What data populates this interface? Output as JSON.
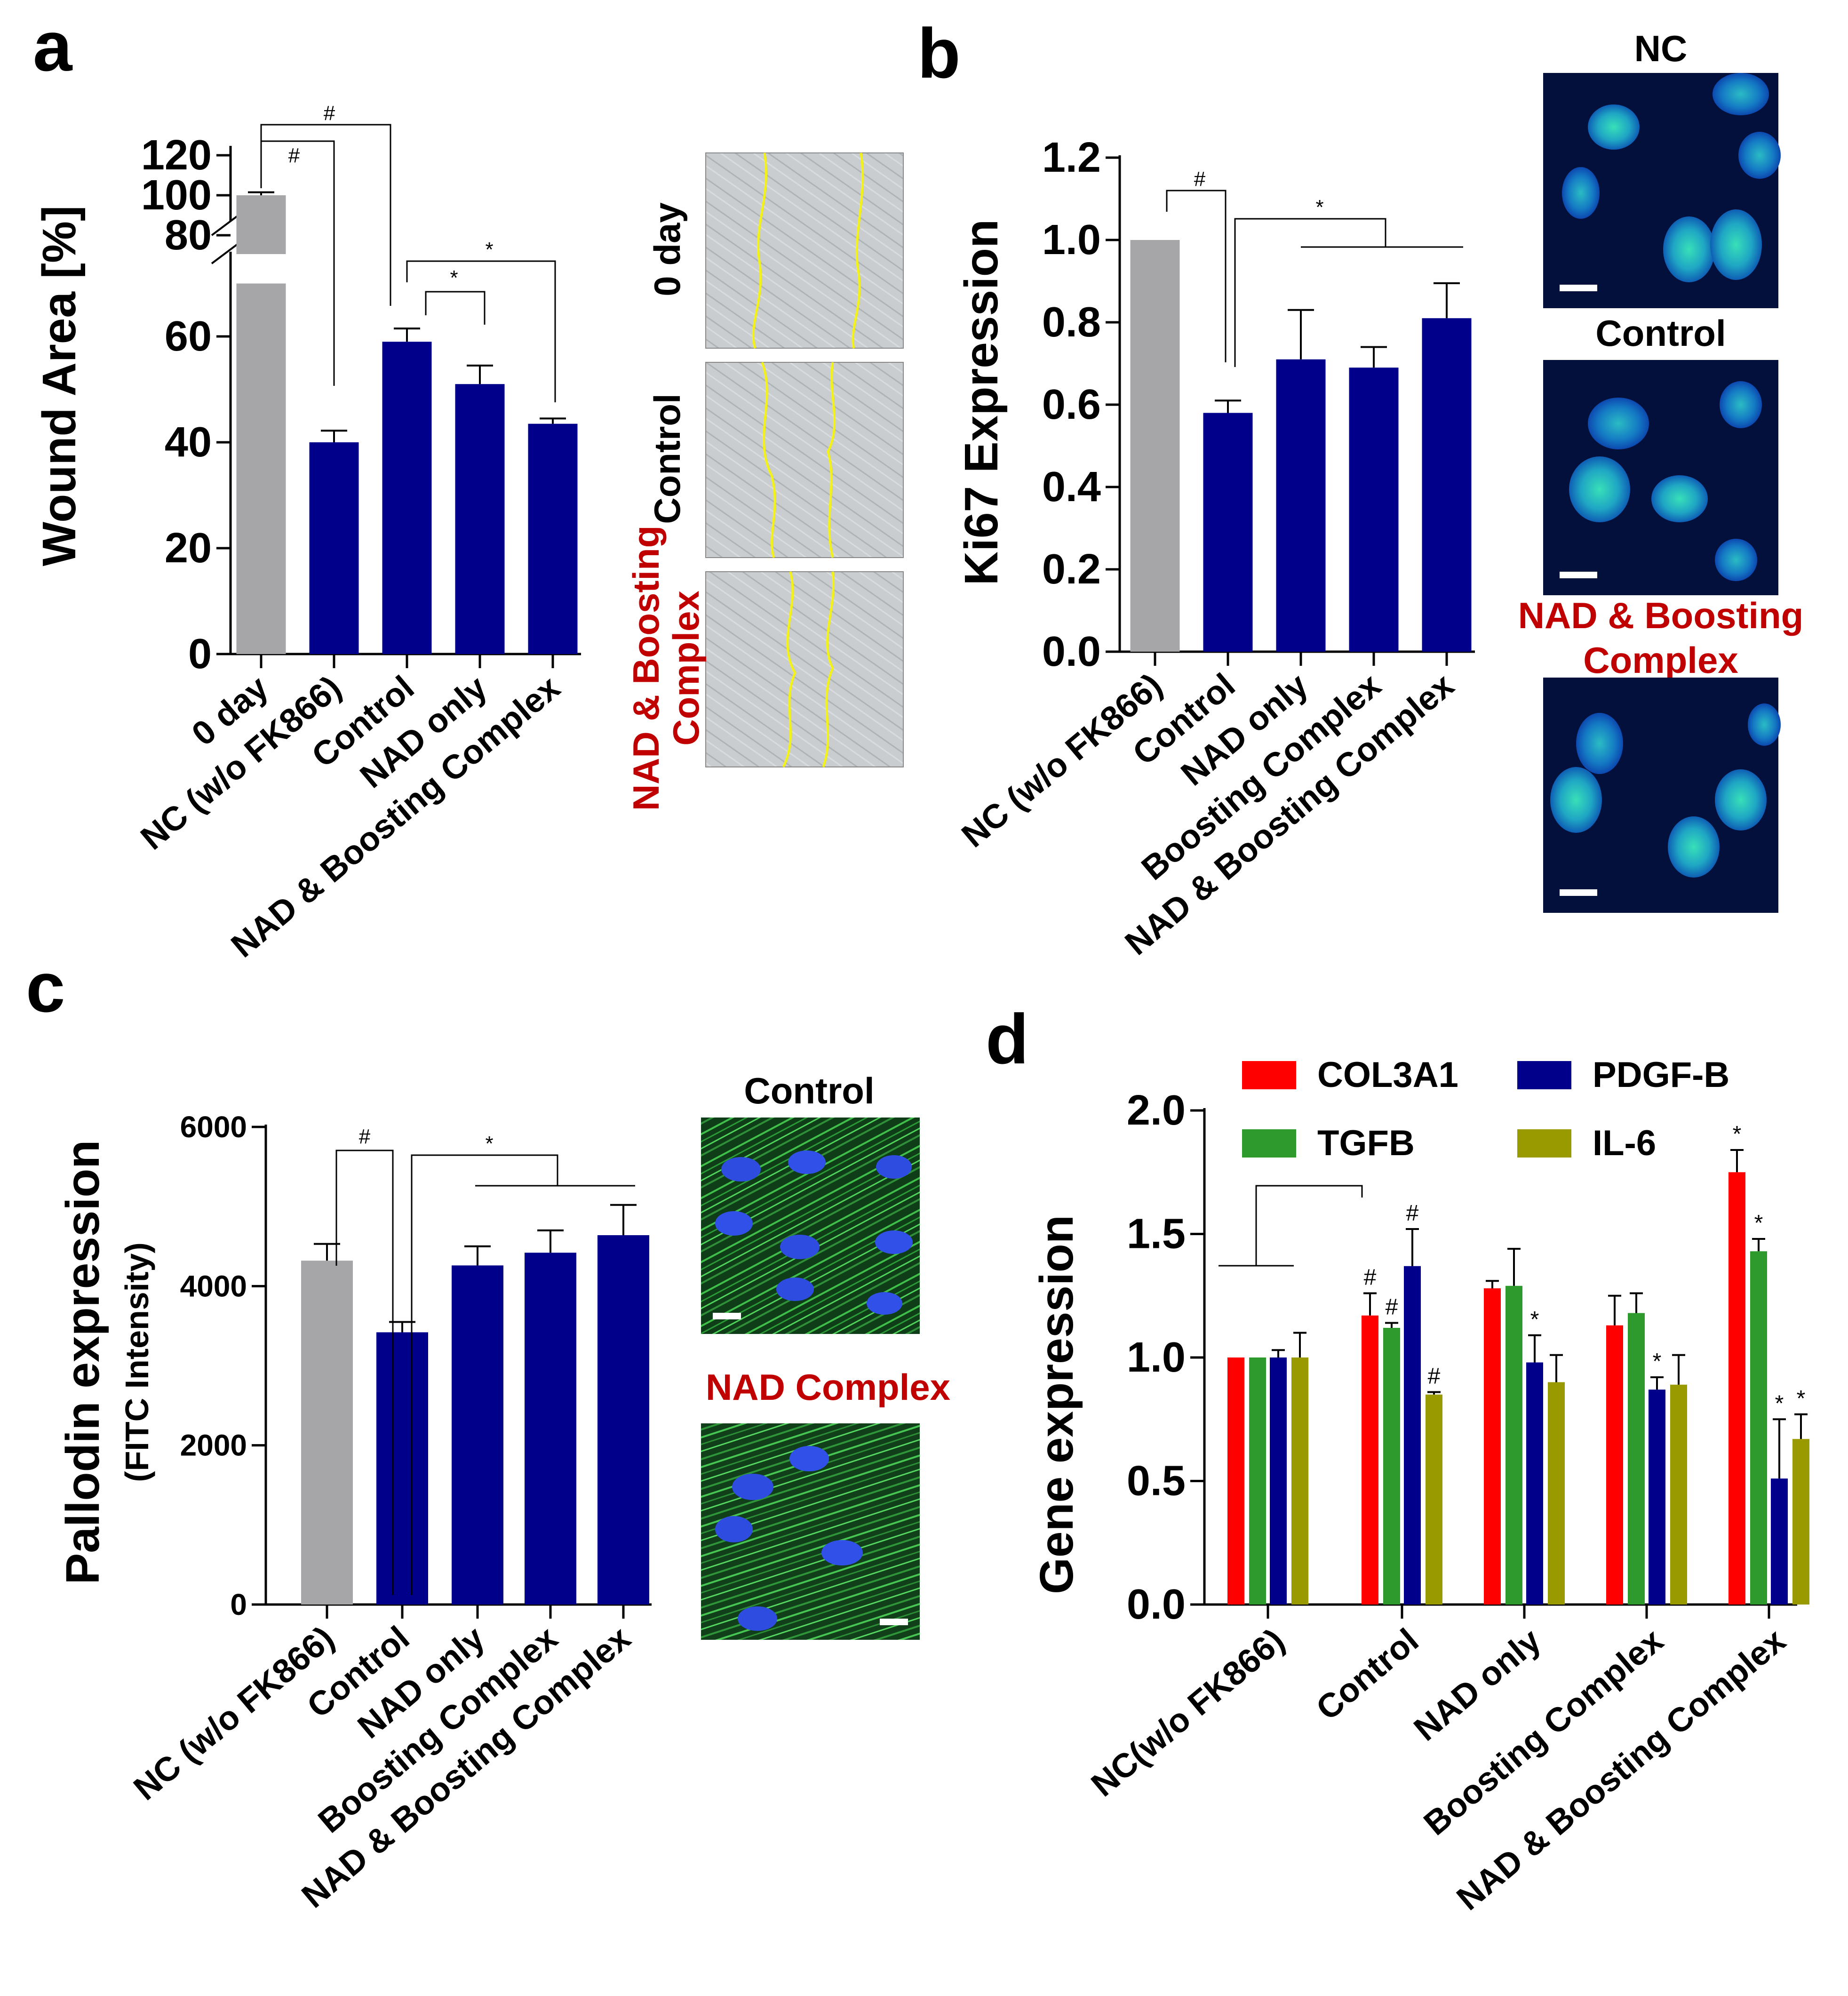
{
  "colors": {
    "gray": "#a6a6a8",
    "navy": "#00008b",
    "red": "#ff0000",
    "green": "#2e9a2e",
    "olive": "#999900",
    "highlight_red": "#c00000"
  },
  "panels": {
    "a": "a",
    "b": "b",
    "c": "c",
    "d": "d"
  },
  "chart_data": [
    {
      "panel": "a",
      "type": "bar",
      "ylabel": "Wound Area [%]",
      "categories": [
        "0 day",
        "NC (w/o FK866)",
        "Control",
        "NAD only",
        "NAD & Boosting Complex"
      ],
      "values": [
        100,
        40,
        59,
        51,
        43.5
      ],
      "errors": [
        1.5,
        2.2,
        2.5,
        3.5,
        1.0
      ],
      "bar_colors": [
        "gray",
        "navy",
        "navy",
        "navy",
        "navy"
      ],
      "ylim": [
        0,
        120
      ],
      "axis_break": [
        70,
        80
      ],
      "yticks_lower": [
        "0",
        "20",
        "40",
        "60"
      ],
      "yticks_upper": [
        "80",
        "100",
        "120"
      ],
      "significance": [
        "#",
        "#",
        "*",
        "*"
      ]
    },
    {
      "panel": "b",
      "type": "bar",
      "ylabel": "Ki67 Expression",
      "categories": [
        "NC (w/o FK866)",
        "Control",
        "NAD only",
        "Boosting Complex",
        "NAD & Boosting Complex"
      ],
      "values": [
        1.0,
        0.58,
        0.71,
        0.69,
        0.81
      ],
      "errors": [
        0.0,
        0.03,
        0.12,
        0.05,
        0.085
      ],
      "bar_colors": [
        "gray",
        "navy",
        "navy",
        "navy",
        "navy"
      ],
      "ylim": [
        0,
        1.2
      ],
      "yticks": [
        "0.0",
        "0.2",
        "0.4",
        "0.6",
        "0.8",
        "1.0",
        "1.2"
      ],
      "significance": [
        "#",
        "*"
      ]
    },
    {
      "panel": "c",
      "type": "bar",
      "ylabel": "Pallodin expression",
      "ylabel_sub": "(FITC  Intensity)",
      "categories": [
        "NC (w/o FK866)",
        "Control",
        "NAD only",
        "Boosting Complex",
        "NAD & Boosting Complex"
      ],
      "values": [
        4320,
        3420,
        4260,
        4420,
        4640
      ],
      "errors": [
        210,
        130,
        240,
        280,
        380
      ],
      "bar_colors": [
        "gray",
        "navy",
        "navy",
        "navy",
        "navy"
      ],
      "ylim": [
        0,
        6000
      ],
      "yticks": [
        "0",
        "2000",
        "4000",
        "6000"
      ],
      "significance": [
        "#",
        "*"
      ]
    },
    {
      "panel": "d",
      "type": "bar",
      "ylabel": "Gene expression",
      "categories": [
        "NC(w/o FK866)",
        "Control",
        "NAD only",
        "Boosting Complex",
        "NAD & Boosting Complex"
      ],
      "ylim": [
        0,
        2.0
      ],
      "yticks": [
        "0.0",
        "0.5",
        "1.0",
        "1.5",
        "2.0"
      ],
      "series": [
        {
          "name": "COL3A1",
          "color": "red",
          "values": [
            1.0,
            1.17,
            1.28,
            1.13,
            1.75
          ],
          "errors": [
            0.0,
            0.09,
            0.03,
            0.12,
            0.09
          ],
          "marks": [
            "",
            "#",
            "",
            "",
            "*"
          ]
        },
        {
          "name": "TGFB",
          "color": "green",
          "values": [
            1.0,
            1.12,
            1.29,
            1.18,
            1.43
          ],
          "errors": [
            0.0,
            0.02,
            0.15,
            0.08,
            0.05
          ],
          "marks": [
            "",
            "#",
            "",
            "",
            "*"
          ]
        },
        {
          "name": "PDGF-B",
          "color": "navy",
          "values": [
            1.0,
            1.37,
            0.98,
            0.87,
            0.51
          ],
          "errors": [
            0.03,
            0.15,
            0.11,
            0.05,
            0.24
          ],
          "marks": [
            "",
            "#",
            "*",
            "*",
            "*"
          ]
        },
        {
          "name": "IL-6",
          "color": "olive",
          "values": [
            1.0,
            0.85,
            0.9,
            0.89,
            0.67
          ],
          "errors": [
            0.1,
            0.01,
            0.11,
            0.12,
            0.1
          ],
          "marks": [
            "",
            "#",
            "",
            "",
            "*"
          ]
        }
      ]
    }
  ],
  "images": {
    "a_labels": [
      "0 day",
      "Control",
      "NAD & Boosting",
      "Complex"
    ],
    "b_labels": [
      "NC",
      "Control",
      "NAD & Boosting",
      "Complex"
    ],
    "c_labels": [
      "Control",
      "NAD Complex"
    ]
  }
}
